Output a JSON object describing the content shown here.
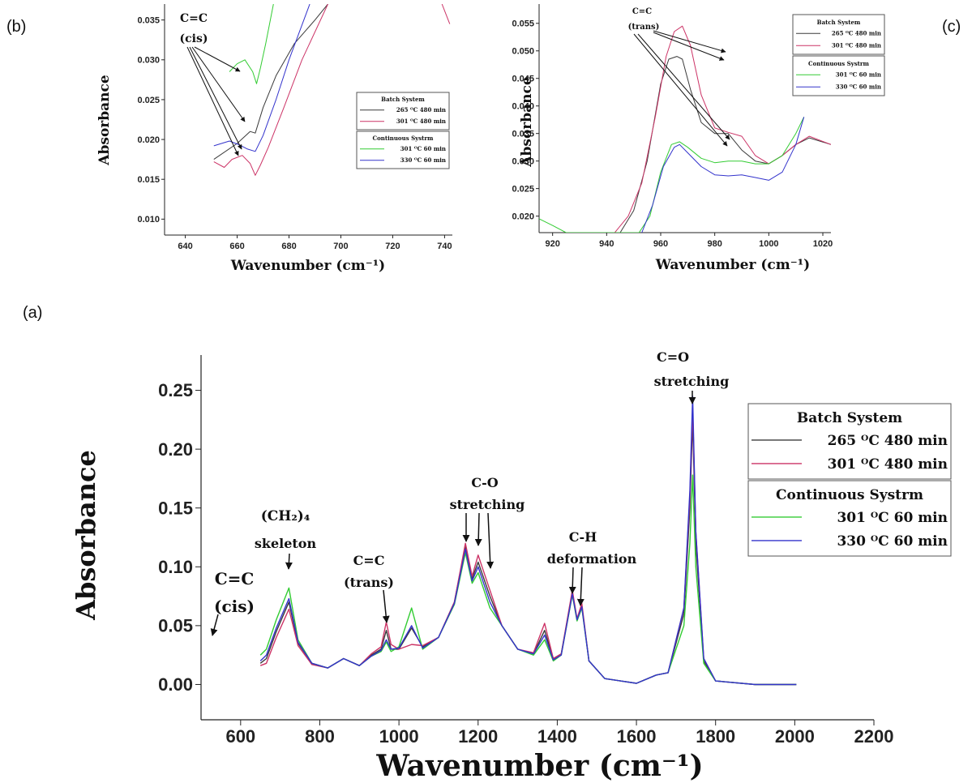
{
  "panel_labels": {
    "a": "(a)",
    "b": "(b)",
    "c": "(c)"
  },
  "colors": {
    "batch_265": "#3a3a3a",
    "batch_301": "#cc3366",
    "cont_301": "#33cc33",
    "cont_330": "#3333cc"
  },
  "chart_data": [
    {
      "id": "a",
      "type": "line",
      "xlabel": "Wavenumber (cm⁻¹)",
      "ylabel": "Absorbance",
      "xlim": [
        500,
        2200
      ],
      "ylim": [
        -0.03,
        0.28
      ],
      "xticks": [
        "600",
        "800",
        "1000",
        "1200",
        "1400",
        "1600",
        "1800",
        "2000",
        "2200"
      ],
      "yticks": [
        "0.00",
        "0.05",
        "0.10",
        "0.15",
        "0.20",
        "0.25"
      ],
      "legend": {
        "position": "right",
        "groups": [
          {
            "title": "Batch System",
            "entries": [
              {
                "series": 0,
                "label": "265 ᴼC 480 min"
              },
              {
                "series": 1,
                "label": "301 ᴼC 480 min"
              }
            ]
          },
          {
            "title": "Continuous Systrm",
            "entries": [
              {
                "series": 2,
                "label": "301 ᴼC 60 min"
              },
              {
                "series": 3,
                "label": "330 ᴼC 60 min"
              }
            ]
          }
        ]
      },
      "annotations": [
        {
          "lines": [
            "C=C",
            "(cis)"
          ],
          "at": [
            663,
            0.022
          ]
        },
        {
          "lines": [
            "(CH₂)₄",
            "skeleton"
          ],
          "at": [
            722,
            0.072
          ]
        },
        {
          "lines": [
            "C=C",
            "(trans)"
          ],
          "at": [
            968,
            0.052
          ]
        },
        {
          "lines": [
            "C-O",
            "stretching"
          ],
          "at": [
            1200,
            0.12
          ]
        },
        {
          "lines": [
            "C-H",
            "deformation"
          ],
          "at": [
            1450,
            0.08
          ]
        },
        {
          "lines": [
            "C=O",
            "stretching"
          ],
          "at": [
            1742,
            0.24
          ]
        }
      ],
      "series": [
        {
          "color": "#3a3a3a",
          "x": [
            650,
            665,
            690,
            722,
            745,
            780,
            820,
            860,
            900,
            930,
            955,
            968,
            980,
            1000,
            1032,
            1060,
            1100,
            1140,
            1168,
            1185,
            1200,
            1230,
            1260,
            1300,
            1340,
            1368,
            1390,
            1410,
            1438,
            1450,
            1462,
            1480,
            1520,
            1600,
            1650,
            1680,
            1720,
            1735,
            1742,
            1750,
            1770,
            1800,
            1900,
            2004
          ],
          "y": [
            0.018,
            0.022,
            0.045,
            0.07,
            0.035,
            0.018,
            0.014,
            0.022,
            0.016,
            0.025,
            0.03,
            0.046,
            0.03,
            0.03,
            0.048,
            0.032,
            0.04,
            0.07,
            0.118,
            0.09,
            0.104,
            0.075,
            0.05,
            0.03,
            0.026,
            0.046,
            0.022,
            0.026,
            0.078,
            0.055,
            0.067,
            0.02,
            0.005,
            0.001,
            0.008,
            0.01,
            0.06,
            0.15,
            0.225,
            0.12,
            0.02,
            0.003,
            0.0,
            0.0
          ]
        },
        {
          "color": "#cc3366",
          "x": [
            650,
            665,
            690,
            722,
            745,
            780,
            820,
            860,
            900,
            930,
            955,
            968,
            980,
            1000,
            1032,
            1060,
            1100,
            1140,
            1168,
            1185,
            1200,
            1230,
            1260,
            1300,
            1340,
            1368,
            1390,
            1410,
            1438,
            1450,
            1462,
            1480,
            1520,
            1600,
            1650,
            1680,
            1720,
            1735,
            1742,
            1750,
            1770,
            1800,
            1900,
            2004
          ],
          "y": [
            0.016,
            0.018,
            0.04,
            0.064,
            0.033,
            0.017,
            0.014,
            0.022,
            0.016,
            0.026,
            0.032,
            0.053,
            0.034,
            0.03,
            0.034,
            0.033,
            0.04,
            0.07,
            0.12,
            0.092,
            0.11,
            0.08,
            0.05,
            0.03,
            0.027,
            0.052,
            0.022,
            0.026,
            0.08,
            0.056,
            0.069,
            0.02,
            0.005,
            0.001,
            0.008,
            0.01,
            0.065,
            0.16,
            0.235,
            0.13,
            0.022,
            0.003,
            0.0,
            0.0
          ]
        },
        {
          "color": "#33cc33",
          "x": [
            650,
            665,
            690,
            722,
            745,
            780,
            820,
            860,
            900,
            930,
            955,
            968,
            980,
            1000,
            1032,
            1060,
            1100,
            1140,
            1168,
            1185,
            1200,
            1230,
            1260,
            1300,
            1340,
            1368,
            1390,
            1410,
            1438,
            1450,
            1462,
            1480,
            1520,
            1600,
            1650,
            1680,
            1720,
            1735,
            1742,
            1750,
            1770,
            1800,
            1900,
            2004
          ],
          "y": [
            0.025,
            0.03,
            0.055,
            0.082,
            0.038,
            0.018,
            0.014,
            0.022,
            0.016,
            0.024,
            0.028,
            0.036,
            0.028,
            0.032,
            0.065,
            0.03,
            0.04,
            0.068,
            0.112,
            0.086,
            0.095,
            0.065,
            0.05,
            0.03,
            0.025,
            0.038,
            0.02,
            0.025,
            0.076,
            0.054,
            0.065,
            0.02,
            0.005,
            0.001,
            0.008,
            0.01,
            0.05,
            0.12,
            0.178,
            0.1,
            0.018,
            0.003,
            0.0,
            0.0
          ]
        },
        {
          "color": "#3333cc",
          "x": [
            650,
            665,
            690,
            722,
            745,
            780,
            820,
            860,
            900,
            930,
            955,
            968,
            980,
            1000,
            1032,
            1060,
            1100,
            1140,
            1168,
            1185,
            1200,
            1230,
            1260,
            1300,
            1340,
            1368,
            1390,
            1410,
            1438,
            1450,
            1462,
            1480,
            1520,
            1600,
            1650,
            1680,
            1720,
            1735,
            1742,
            1750,
            1770,
            1800,
            1900,
            2004
          ],
          "y": [
            0.02,
            0.025,
            0.048,
            0.073,
            0.036,
            0.018,
            0.014,
            0.022,
            0.016,
            0.024,
            0.029,
            0.038,
            0.03,
            0.031,
            0.05,
            0.031,
            0.04,
            0.069,
            0.115,
            0.088,
            0.1,
            0.07,
            0.05,
            0.03,
            0.026,
            0.042,
            0.021,
            0.025,
            0.077,
            0.055,
            0.066,
            0.02,
            0.005,
            0.001,
            0.008,
            0.01,
            0.065,
            0.165,
            0.245,
            0.13,
            0.022,
            0.003,
            0.0,
            0.0
          ]
        }
      ]
    },
    {
      "id": "b",
      "type": "line",
      "xlabel": "Wavenumber (cm⁻¹)",
      "ylabel": "Absorbance",
      "xlim": [
        632,
        743
      ],
      "ylim": [
        0.008,
        0.037
      ],
      "xticks": [
        "640",
        "660",
        "680",
        "700",
        "720",
        "740"
      ],
      "yticks": [
        "0.010",
        "0.015",
        "0.020",
        "0.025",
        "0.030",
        "0.035"
      ],
      "legend": {
        "position": "right",
        "groups": [
          {
            "title": "Batch System",
            "entries": [
              {
                "series": 0,
                "label": "265 ᴼC 480 min"
              },
              {
                "series": 1,
                "label": "301 ᴼC 480 min"
              }
            ]
          },
          {
            "title": "Continuous Systrm",
            "entries": [
              {
                "series": 2,
                "label": "301 ᴼC 60 min"
              },
              {
                "series": 3,
                "label": "330 ᴼC 60 min"
              }
            ]
          }
        ]
      },
      "annotations": [
        {
          "lines": [
            "C=C",
            "(cis)"
          ]
        }
      ],
      "series": [
        {
          "color": "#3a3a3a",
          "x": [
            651,
            660,
            665,
            667,
            670,
            675,
            682,
            690,
            695
          ],
          "y": [
            0.0175,
            0.0195,
            0.021,
            0.0208,
            0.024,
            0.028,
            0.032,
            0.035,
            0.037
          ]
        },
        {
          "color": "#cc3366",
          "x": [
            651,
            655,
            658,
            662,
            665,
            667,
            669,
            672,
            678,
            685,
            695
          ],
          "y": [
            0.0172,
            0.0165,
            0.0175,
            0.018,
            0.017,
            0.0155,
            0.0168,
            0.019,
            0.024,
            0.03,
            0.037
          ]
        },
        {
          "color": "#33cc33",
          "x": [
            657,
            660,
            663,
            666,
            667.5,
            669,
            671,
            674
          ],
          "y": [
            0.0285,
            0.0295,
            0.03,
            0.0285,
            0.027,
            0.029,
            0.032,
            0.037
          ]
        },
        {
          "color": "#3333cc",
          "x": [
            651,
            657,
            661,
            664,
            667,
            670,
            675,
            680,
            688
          ],
          "y": [
            0.0192,
            0.0198,
            0.0193,
            0.0188,
            0.0185,
            0.0205,
            0.025,
            0.03,
            0.037
          ]
        }
      ],
      "extra_fragment": {
        "color": "#cc3366",
        "x": [
          739,
          742
        ],
        "y": [
          0.037,
          0.0345
        ]
      }
    },
    {
      "id": "c",
      "type": "line",
      "xlabel": "Wavenumber (cm⁻¹)",
      "ylabel": "Absorbance",
      "xlim": [
        915,
        1023
      ],
      "ylim": [
        0.017,
        0.0585
      ],
      "xticks": [
        "920",
        "940",
        "960",
        "980",
        "1000",
        "1020"
      ],
      "yticks": [
        "0.020",
        "0.025",
        "0.030",
        "0.035",
        "0.040",
        "0.045",
        "0.050",
        "0.055"
      ],
      "legend": {
        "position": "top-right",
        "groups": [
          {
            "title": "Batch System",
            "entries": [
              {
                "series": 0,
                "label": "265 ᴼC 480 min"
              },
              {
                "series": 1,
                "label": "301 ᴼC 480 min"
              }
            ]
          },
          {
            "title": "Continuous Systrm",
            "entries": [
              {
                "series": 2,
                "label": "301 ᴼC 60 min"
              },
              {
                "series": 3,
                "label": "330 ᴼC 60 min"
              }
            ]
          }
        ]
      },
      "annotations": [
        {
          "lines": [
            "C=C",
            "(trans)"
          ]
        }
      ],
      "series": [
        {
          "color": "#3a3a3a",
          "x": [
            945,
            950,
            955,
            960,
            963,
            966,
            968,
            971,
            975,
            980,
            985,
            990,
            995,
            1000,
            1005,
            1010,
            1015,
            1023
          ],
          "y": [
            0.017,
            0.021,
            0.03,
            0.044,
            0.0485,
            0.049,
            0.0485,
            0.043,
            0.037,
            0.035,
            0.035,
            0.032,
            0.03,
            0.0295,
            0.031,
            0.033,
            0.0342,
            0.033
          ]
        },
        {
          "color": "#cc3366",
          "x": [
            943,
            948,
            953,
            958,
            962,
            965,
            968,
            971,
            975,
            980,
            985,
            990,
            995,
            1000,
            1005,
            1010,
            1015,
            1023
          ],
          "y": [
            0.017,
            0.02,
            0.026,
            0.038,
            0.049,
            0.0535,
            0.0545,
            0.051,
            0.042,
            0.036,
            0.0352,
            0.0345,
            0.031,
            0.0295,
            0.031,
            0.033,
            0.0345,
            0.033
          ]
        },
        {
          "color": "#33cc33",
          "x": [
            915,
            920,
            925,
            952,
            956,
            960,
            964,
            967,
            970,
            975,
            980,
            985,
            990,
            995,
            1000,
            1005,
            1010,
            1013
          ],
          "y": [
            0.0195,
            0.0183,
            0.017,
            0.017,
            0.02,
            0.028,
            0.033,
            0.0335,
            0.0325,
            0.0305,
            0.0297,
            0.03,
            0.03,
            0.0295,
            0.0295,
            0.031,
            0.035,
            0.038
          ]
        },
        {
          "color": "#3333cc",
          "x": [
            953,
            957,
            961,
            965,
            967,
            970,
            975,
            980,
            985,
            990,
            995,
            1000,
            1005,
            1010,
            1013
          ],
          "y": [
            0.017,
            0.022,
            0.029,
            0.0325,
            0.033,
            0.0315,
            0.029,
            0.0275,
            0.0273,
            0.0275,
            0.027,
            0.0265,
            0.028,
            0.033,
            0.038
          ]
        }
      ]
    }
  ]
}
